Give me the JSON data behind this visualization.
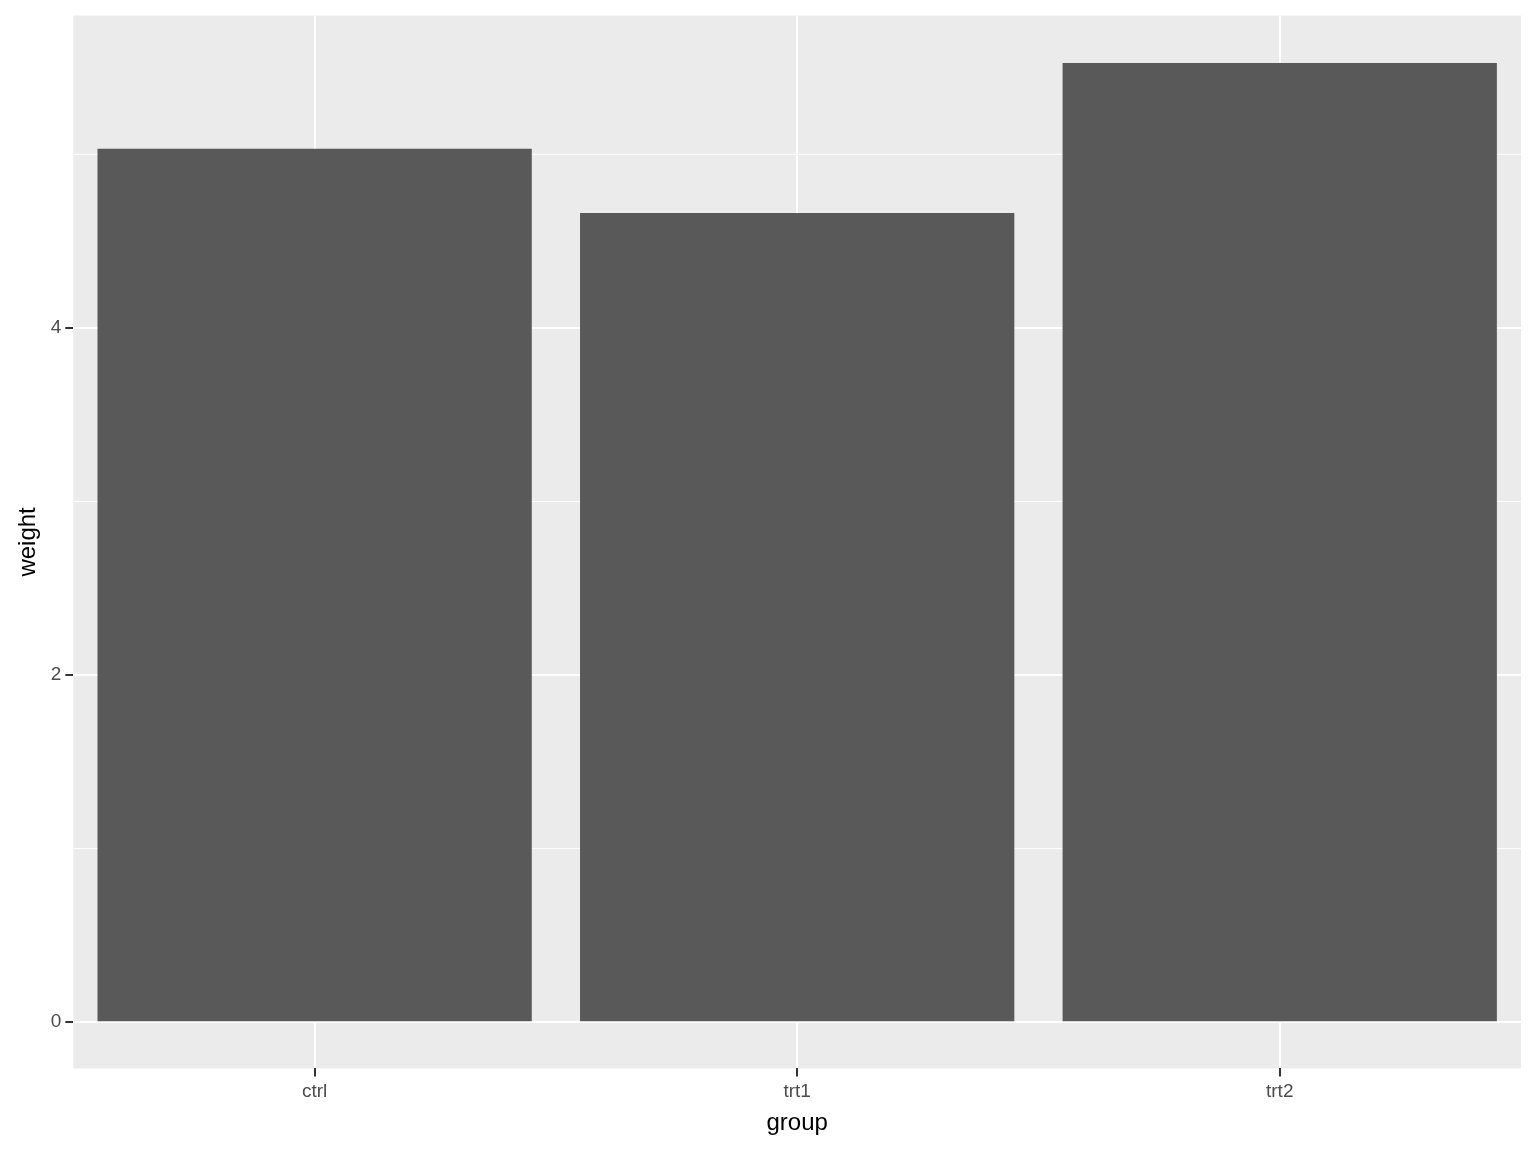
{
  "chart_data": {
    "type": "bar",
    "xlabel": "group",
    "ylabel": "weight",
    "categories": [
      "ctrl",
      "trt1",
      "trt2"
    ],
    "values": [
      5.032,
      4.661,
      5.526
    ],
    "color": "#595959",
    "ylim": [
      -0.266,
      5.8
    ],
    "yticks": [
      0,
      2,
      4
    ],
    "grid": true,
    "legend": false
  }
}
